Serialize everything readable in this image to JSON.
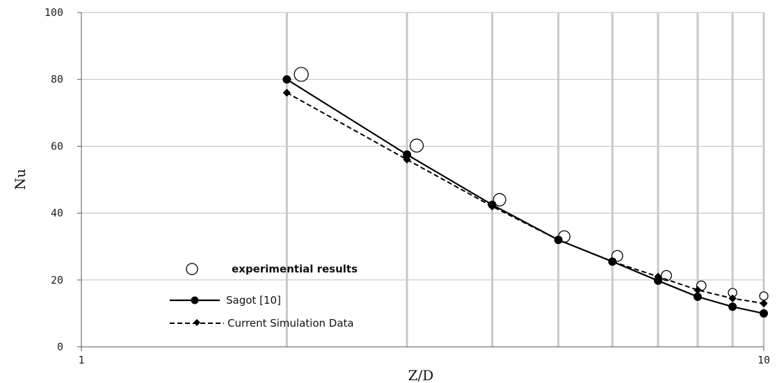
{
  "chart_data": {
    "type": "line",
    "xscale": "log",
    "xlim": [
      1,
      10
    ],
    "ylim": [
      0,
      100
    ],
    "xlabel": "Z/D",
    "ylabel": "Nu",
    "x_ticks": [
      "1",
      "10"
    ],
    "y_ticks": [
      "0",
      "20",
      "40",
      "60",
      "80",
      "100"
    ],
    "grid": "vertical and horizontal",
    "legend_position": "lower-left",
    "series": [
      {
        "name": "experimential results",
        "style": "open-circle-markers",
        "color": "#000000",
        "points": [
          [
            2.1,
            81.5
          ],
          [
            3.1,
            60.2
          ],
          [
            4.1,
            44
          ],
          [
            5.1,
            33
          ],
          [
            6.1,
            27.2
          ],
          [
            7.2,
            21.3
          ],
          [
            8.1,
            18.3
          ],
          [
            9.0,
            16.2
          ],
          [
            10.0,
            15.2
          ]
        ]
      },
      {
        "name": "Sagot [10]",
        "style": "solid-line-filled-circle",
        "color": "#000000",
        "points": [
          [
            2.0,
            80
          ],
          [
            3.0,
            57.5
          ],
          [
            4.0,
            42.5
          ],
          [
            5.0,
            32
          ],
          [
            6.0,
            25.5
          ],
          [
            7.0,
            19.8
          ],
          [
            8.0,
            15
          ],
          [
            9.0,
            12
          ],
          [
            10.0,
            10
          ]
        ]
      },
      {
        "name": "Current Simulation Data",
        "style": "dashed-line-filled-diamond",
        "color": "#000000",
        "points": [
          [
            2.0,
            76
          ],
          [
            3.0,
            56
          ],
          [
            4.0,
            42
          ],
          [
            5.0,
            32
          ],
          [
            6.0,
            25.5
          ],
          [
            7.0,
            21
          ],
          [
            8.0,
            17
          ],
          [
            9.0,
            14.5
          ],
          [
            10.0,
            13
          ]
        ]
      }
    ]
  }
}
